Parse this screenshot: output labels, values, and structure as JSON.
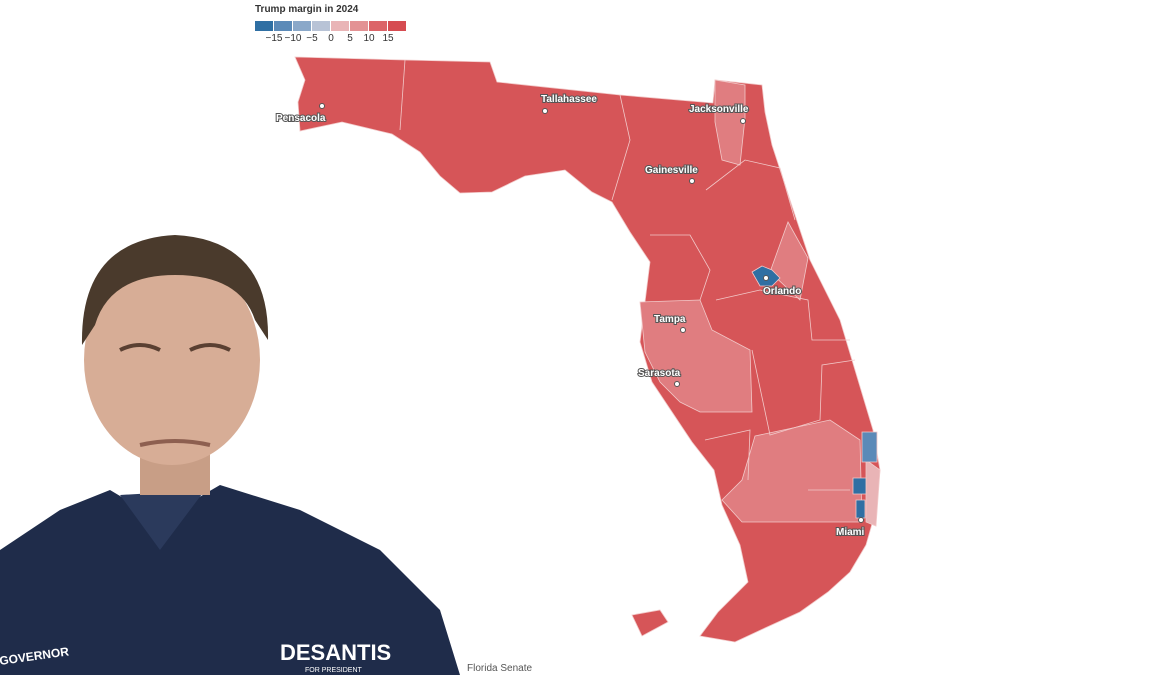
{
  "legend": {
    "title": "Trump margin in 2024",
    "colors": [
      "#2f6fa3",
      "#5b8ab8",
      "#8aa8c9",
      "#b8c3d6",
      "#e9b4b6",
      "#e39294",
      "#dc6468",
      "#d64c51"
    ],
    "ticks": [
      "−15",
      "−10",
      "−5",
      "0",
      "5",
      "10",
      "15"
    ]
  },
  "cities": [
    {
      "name": "Pensacola"
    },
    {
      "name": "Tallahassee"
    },
    {
      "name": "Jacksonville"
    },
    {
      "name": "Gainesville"
    },
    {
      "name": "Orlando"
    },
    {
      "name": "Tampa"
    },
    {
      "name": "Sarasota"
    },
    {
      "name": "Miami"
    }
  ],
  "credit": "Florida Senate",
  "photo": {
    "shirt_logo": "DESANTIS",
    "shirt_sub": "FOR PRESIDENT",
    "shirt_left": "GOVERNOR"
  }
}
